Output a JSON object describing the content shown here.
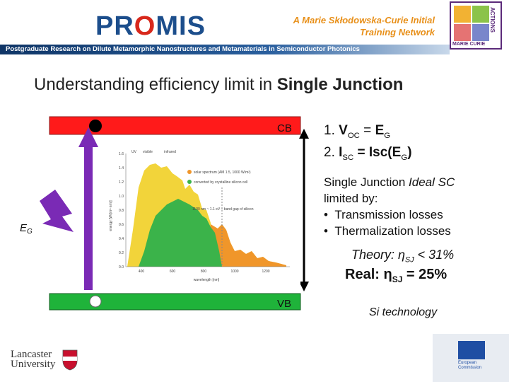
{
  "header": {
    "logo_left": "PR",
    "logo_o": "O",
    "logo_right": "MIS",
    "network_line1": "A Marie Skłodowska-Curie Initial",
    "network_line2": "Training Network",
    "tagline": "Postgraduate Research on Dilute Metamorphic Nanostructures and Metamaterials in Semiconductor Photonics",
    "badge_side": "ACTIONS",
    "badge_bottom": "MARIE CURIE"
  },
  "title": {
    "plain": "Understanding efficiency limit in ",
    "bold": "Single Junction"
  },
  "diagram": {
    "cb": "CB",
    "vb": "VB",
    "eg": "E",
    "eg_sub": "G",
    "spectrum": {
      "uv": "UV",
      "visible": "visible",
      "infrared": "infrared",
      "ylabel": "energy [W/(m²·nm)]",
      "xlabel": "wavelength [nm]",
      "xticks": [
        "400",
        "600",
        "800",
        "1000",
        "1200"
      ],
      "yticks": [
        "1.6",
        "1.4",
        "1.2",
        "1.0",
        "0.8",
        "0.6",
        "0.4",
        "0.2",
        "0.0"
      ],
      "legend": [
        "solar spectrum (AM 1.5, 1000 W/m²)",
        "converted by crystalline silicon cell"
      ],
      "annotation": "1100 nm ~ 1.1 eV – band gap of silicon"
    }
  },
  "conditions": [
    {
      "num": "1. ",
      "a": "V",
      "a_sub": "OC",
      "op": " = ",
      "b": "E",
      "b_sub": "G"
    },
    {
      "num": "2. ",
      "a": "I",
      "a_sub": "SC",
      "op": " = ",
      "b": "Isc(E",
      "b_sub": "G",
      "b_end": ")"
    }
  ],
  "limits": {
    "line1_bold": "Single Junction ",
    "line1_italic": "Ideal SC",
    "line2": "limited by:",
    "bullets": [
      "Transmission losses",
      "Thermalization losses"
    ]
  },
  "theory": {
    "text": "Theory: η",
    "sub": "SJ",
    "rest": " < 31%"
  },
  "real": {
    "text": "Real: η",
    "sub": "SJ",
    "rest": " = 25%"
  },
  "technology": "Si technology",
  "footer": {
    "university_line1": "Lancaster",
    "university_line2": "University",
    "eu_line1": "European",
    "eu_line2": "Commission"
  }
}
